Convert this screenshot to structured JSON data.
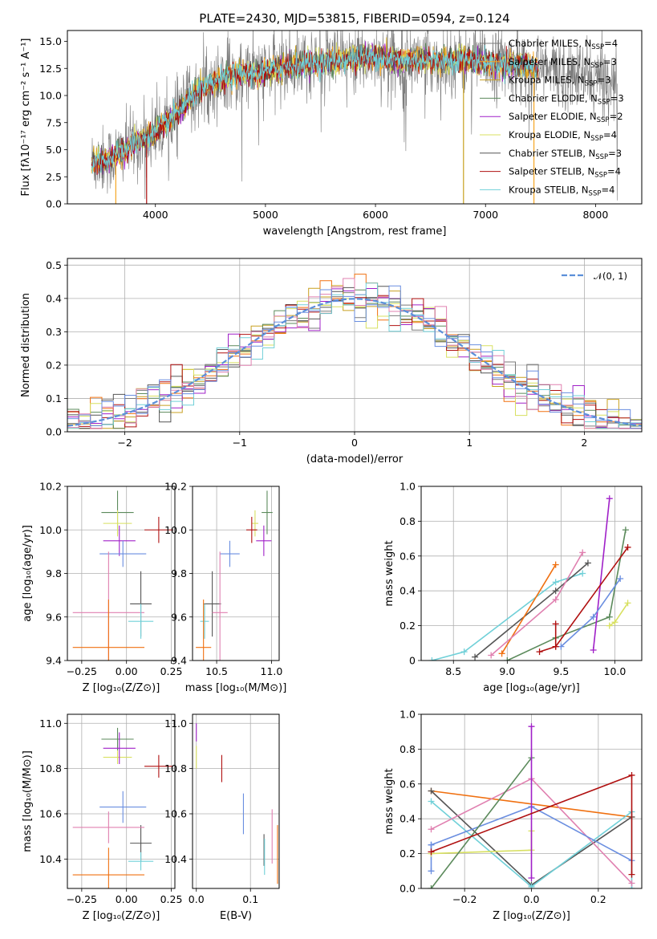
{
  "figure_title": "PLATE=2430, MJD=53815, FIBERID=0594, z=0.124",
  "colors": [
    "#7a7a7a",
    "#f5a623",
    "#c8a020",
    "#5b8a5b",
    "#a020c8",
    "#d8e060",
    "#555555",
    "#b01010",
    "#70d0d8"
  ],
  "chart_data": [
    {
      "id": "spectrum",
      "type": "line",
      "title": "PLATE=2430, MJD=53815, FIBERID=0594, z=0.124",
      "xlabel": "wavelength [Angstrom, rest frame]",
      "ylabel": "Flux [fλ10⁻¹⁷ erg cm⁻² s⁻¹ A⁻¹]",
      "xlim": [
        3200,
        8420
      ],
      "ylim": [
        0,
        16
      ],
      "xticks": [
        "4000",
        "5000",
        "6000",
        "7000",
        "8000"
      ],
      "yticks": [
        "0.0",
        "2.5",
        "5.0",
        "7.5",
        "10.0",
        "12.5",
        "15.0"
      ],
      "grid": false,
      "legend_position": "upper-right",
      "series": [
        {
          "name": "Chabrier MILES, N",
          "sub": "SSP",
          "suffix": "=4"
        },
        {
          "name": "Salpeter MILES, N",
          "sub": "SSP",
          "suffix": "=3"
        },
        {
          "name": "Kroupa MILES, N",
          "sub": "SSP",
          "suffix": "=3"
        },
        {
          "name": "Chabrier ELODIE, N",
          "sub": "SSP",
          "suffix": "=3"
        },
        {
          "name": "Salpeter ELODIE, N",
          "sub": "SSP",
          "suffix": "=2"
        },
        {
          "name": "Kroupa ELODIE, N",
          "sub": "SSP",
          "suffix": "=4"
        },
        {
          "name": "Chabrier STELIB, N",
          "sub": "SSP",
          "suffix": "=3"
        },
        {
          "name": "Salpeter STELIB, N",
          "sub": "SSP",
          "suffix": "=4"
        },
        {
          "name": "Kroupa STELIB, N",
          "sub": "SSP",
          "suffix": "=4"
        }
      ],
      "continuum": [
        [
          3400,
          3.8
        ],
        [
          3600,
          4.2
        ],
        [
          3800,
          5.5
        ],
        [
          4000,
          6.5
        ],
        [
          4200,
          8.5
        ],
        [
          4400,
          10.5
        ],
        [
          4600,
          11.5
        ],
        [
          4800,
          12.0
        ],
        [
          5000,
          12.2
        ],
        [
          5200,
          12.7
        ],
        [
          5400,
          13.0
        ],
        [
          5600,
          13.1
        ],
        [
          5800,
          13.4
        ],
        [
          6000,
          13.6
        ],
        [
          6200,
          13.2
        ],
        [
          6400,
          13.3
        ],
        [
          6600,
          13.2
        ],
        [
          6800,
          13.3
        ],
        [
          7000,
          13.1
        ],
        [
          7200,
          12.9
        ],
        [
          7400,
          12.7
        ],
        [
          7600,
          12.3
        ],
        [
          7800,
          11.9
        ],
        [
          8000,
          11.6
        ],
        [
          8200,
          11.2
        ]
      ]
    },
    {
      "id": "residuals",
      "type": "histogram",
      "xlabel": "(data-model)/error",
      "ylabel": "Normed distribution",
      "xlim": [
        -2.5,
        2.5
      ],
      "ylim": [
        0,
        0.52
      ],
      "xticks": [
        "−2",
        "−1",
        "0",
        "1",
        "2"
      ],
      "yticks": [
        "0.0",
        "0.1",
        "0.2",
        "0.3",
        "0.4",
        "0.5"
      ],
      "grid": true,
      "legend": {
        "label": "𝒩(0, 1)",
        "position": "upper-right",
        "color": "#5b8fd9"
      }
    },
    {
      "id": "age-vs-Z",
      "type": "errorbar",
      "xlabel": "Z [log₁₀(Z/Z⊙)]",
      "ylabel": "age  [log₁₀(age/yr)]",
      "xlim": [
        -0.33,
        0.27
      ],
      "ylim": [
        9.4,
        10.2
      ],
      "xticks": [
        "−0.25",
        "0.00",
        "0.25"
      ],
      "yticks": [
        "9.4",
        "9.6",
        "9.8",
        "10.0",
        "10.2"
      ],
      "grid": true,
      "points": [
        {
          "color": "#5b8a5b",
          "x": -0.05,
          "xe": 0.09,
          "y": 10.08,
          "ye": 0.1
        },
        {
          "color": "#d8e060",
          "x": -0.05,
          "xe": 0.08,
          "y": 10.03,
          "ye": 0.06
        },
        {
          "color": "#b01010",
          "x": 0.18,
          "xe": 0.08,
          "y": 10.0,
          "ye": 0.06
        },
        {
          "color": "#a020c8",
          "x": -0.04,
          "xe": 0.09,
          "y": 9.95,
          "ye": 0.07
        },
        {
          "color": "#6a8ee0",
          "x": -0.02,
          "xe": 0.13,
          "y": 9.89,
          "ye": 0.06
        },
        {
          "color": "#555555",
          "x": 0.08,
          "xe": 0.06,
          "y": 9.66,
          "ye": 0.15
        },
        {
          "color": "#e080b0",
          "x": -0.1,
          "xe": 0.2,
          "y": 9.62,
          "ye": 0.28
        },
        {
          "color": "#70d0d8",
          "x": 0.08,
          "xe": 0.07,
          "y": 9.58,
          "ye": 0.08
        },
        {
          "color": "#f07010",
          "x": -0.1,
          "xe": 0.2,
          "y": 9.46,
          "ye": 0.22
        }
      ]
    },
    {
      "id": "age-vs-mass",
      "type": "errorbar",
      "xlabel": "mass [log₁₀(M/M⊙)]",
      "ylabel": "",
      "xlim": [
        10.28,
        11.07
      ],
      "ylim": [
        9.4,
        10.2
      ],
      "xticks": [
        "10.5",
        "11.0"
      ],
      "yticks": [
        "9.4",
        "9.6",
        "9.8",
        "10.0",
        "10.2"
      ],
      "grid": true,
      "points": [
        {
          "color": "#5b8a5b",
          "x": 10.96,
          "xe": 0.05,
          "y": 10.08,
          "ye": 0.1
        },
        {
          "color": "#d8e060",
          "x": 10.85,
          "xe": 0.03,
          "y": 10.03,
          "ye": 0.06
        },
        {
          "color": "#b01010",
          "x": 10.82,
          "xe": 0.05,
          "y": 10.0,
          "ye": 0.06
        },
        {
          "color": "#a020c8",
          "x": 10.93,
          "xe": 0.07,
          "y": 9.95,
          "ye": 0.07
        },
        {
          "color": "#6a8ee0",
          "x": 10.62,
          "xe": 0.09,
          "y": 9.89,
          "ye": 0.06
        },
        {
          "color": "#555555",
          "x": 10.46,
          "xe": 0.08,
          "y": 9.66,
          "ye": 0.15
        },
        {
          "color": "#e080b0",
          "x": 10.53,
          "xe": 0.07,
          "y": 9.62,
          "ye": 0.28
        },
        {
          "color": "#70d0d8",
          "x": 10.39,
          "xe": 0.04,
          "y": 9.58,
          "ye": 0.08
        },
        {
          "color": "#f07010",
          "x": 10.38,
          "xe": 0.07,
          "y": 9.46,
          "ye": 0.22
        }
      ]
    },
    {
      "id": "mass-weight-vs-age",
      "type": "line",
      "xlabel": "age  [log₁₀(age/yr)]",
      "ylabel": "mass weight",
      "xlim": [
        8.2,
        10.25
      ],
      "ylim": [
        0,
        1
      ],
      "xticks": [
        "8.5",
        "9.0",
        "9.5",
        "10.0"
      ],
      "yticks": [
        "0",
        "0.2",
        "0.4",
        "0.6",
        "0.8",
        "1.0"
      ],
      "grid": true,
      "series": [
        {
          "color": "#70d0d8",
          "points": [
            [
              8.3,
              0.0
            ],
            [
              8.6,
              0.05
            ],
            [
              9.45,
              0.45
            ],
            [
              9.7,
              0.5
            ]
          ]
        },
        {
          "color": "#555555",
          "points": [
            [
              8.7,
              0.02
            ],
            [
              9.45,
              0.4
            ],
            [
              9.75,
              0.56
            ]
          ]
        },
        {
          "color": "#f07010",
          "points": [
            [
              8.95,
              0.04
            ],
            [
              9.45,
              0.55
            ]
          ]
        },
        {
          "color": "#e080b0",
          "points": [
            [
              8.85,
              0.03
            ],
            [
              9.45,
              0.35
            ],
            [
              9.7,
              0.62
            ]
          ]
        },
        {
          "color": "#5b8a5b",
          "points": [
            [
              9.0,
              0.0
            ],
            [
              9.45,
              0.13
            ],
            [
              9.95,
              0.25
            ],
            [
              10.1,
              0.75
            ]
          ]
        },
        {
          "color": "#a020c8",
          "points": [
            [
              9.8,
              0.06
            ],
            [
              9.95,
              0.93
            ]
          ]
        },
        {
          "color": "#6a8ee0",
          "points": [
            [
              9.5,
              0.08
            ],
            [
              9.8,
              0.25
            ],
            [
              10.05,
              0.47
            ]
          ]
        },
        {
          "color": "#d8e060",
          "points": [
            [
              9.95,
              0.2
            ],
            [
              10.0,
              0.22
            ],
            [
              10.12,
              0.33
            ]
          ]
        },
        {
          "color": "#b01010",
          "points": [
            [
              9.3,
              0.05
            ],
            [
              9.45,
              0.08
            ],
            [
              10.12,
              0.65
            ]
          ]
        },
        {
          "color": "#b01010",
          "points": [
            [
              9.45,
              0.08
            ],
            [
              9.45,
              0.21
            ]
          ]
        }
      ]
    },
    {
      "id": "mass-vs-Z",
      "type": "errorbar",
      "xlabel": "Z [log₁₀(Z/Z⊙)]",
      "ylabel": "mass [log₁₀(M/M⊙)]",
      "xlim": [
        -0.33,
        0.27
      ],
      "ylim": [
        10.27,
        11.04
      ],
      "xticks": [
        "−0.25",
        "0.00",
        "0.25"
      ],
      "yticks": [
        "10.4",
        "10.6",
        "10.8",
        "11.0"
      ],
      "grid": true,
      "points": [
        {
          "color": "#5b8a5b",
          "x": -0.05,
          "xe": 0.09,
          "y": 10.93,
          "ye": 0.05
        },
        {
          "color": "#d8e060",
          "x": -0.05,
          "xe": 0.08,
          "y": 10.85,
          "ye": 0.03
        },
        {
          "color": "#b01010",
          "x": 0.18,
          "xe": 0.08,
          "y": 10.81,
          "ye": 0.05
        },
        {
          "color": "#a020c8",
          "x": -0.04,
          "xe": 0.09,
          "y": 10.89,
          "ye": 0.07
        },
        {
          "color": "#6a8ee0",
          "x": -0.02,
          "xe": 0.13,
          "y": 10.63,
          "ye": 0.07
        },
        {
          "color": "#555555",
          "x": 0.08,
          "xe": 0.06,
          "y": 10.47,
          "ye": 0.08
        },
        {
          "color": "#e080b0",
          "x": -0.1,
          "xe": 0.2,
          "y": 10.54,
          "ye": 0.07
        },
        {
          "color": "#70d0d8",
          "x": 0.08,
          "xe": 0.07,
          "y": 10.39,
          "ye": 0.04
        },
        {
          "color": "#f07010",
          "x": -0.1,
          "xe": 0.2,
          "y": 10.33,
          "ye": 0.12
        }
      ]
    },
    {
      "id": "mass-vs-ebv",
      "type": "errorbar",
      "xlabel": "E(B-V)",
      "ylabel": "",
      "xlim": [
        -0.007,
        0.153
      ],
      "ylim": [
        10.27,
        11.04
      ],
      "xticks": [
        "0.0",
        "0.1"
      ],
      "yticks": [
        "10.4",
        "10.6",
        "10.8",
        "11.0"
      ],
      "grid": true,
      "points": [
        {
          "color": "#a020c8",
          "x": 0.0,
          "xe": 0,
          "y": 10.96,
          "ye": 0.04
        },
        {
          "color": "#d8e060",
          "x": 0.0,
          "xe": 0,
          "y": 10.85,
          "ye": 0.05
        },
        {
          "color": "#b01010",
          "x": 0.047,
          "xe": 0,
          "y": 10.8,
          "ye": 0.06
        },
        {
          "color": "#6a8ee0",
          "x": 0.087,
          "xe": 0,
          "y": 10.6,
          "ye": 0.09
        },
        {
          "color": "#555555",
          "x": 0.125,
          "xe": 0,
          "y": 10.44,
          "ye": 0.07
        },
        {
          "color": "#70d0d8",
          "x": 0.126,
          "xe": 0,
          "y": 10.41,
          "ye": 0.08
        },
        {
          "color": "#e080b0",
          "x": 0.14,
          "xe": 0,
          "y": 10.5,
          "ye": 0.12
        },
        {
          "color": "#f07010",
          "x": 0.15,
          "xe": 0,
          "y": 10.42,
          "ye": 0.13
        }
      ]
    },
    {
      "id": "mass-weight-vs-Z",
      "type": "line",
      "xlabel": "Z [log₁₀(Z/Z⊙)]",
      "ylabel": "mass weight",
      "xlim": [
        -0.33,
        0.33
      ],
      "ylim": [
        0,
        1
      ],
      "xticks": [
        "−0.2",
        "0.0",
        "0.2"
      ],
      "yticks": [
        "0.0",
        "0.2",
        "0.4",
        "0.6",
        "0.8",
        "1.0"
      ],
      "grid": true,
      "series": [
        {
          "color": "#f07010",
          "points": [
            [
              -0.3,
              0.56
            ],
            [
              0.3,
              0.41
            ]
          ]
        },
        {
          "color": "#555555",
          "points": [
            [
              -0.3,
              0.56
            ],
            [
              0.0,
              0.02
            ],
            [
              0.3,
              0.41
            ]
          ]
        },
        {
          "color": "#70d0d8",
          "points": [
            [
              -0.3,
              0.5
            ],
            [
              0.0,
              0.01
            ],
            [
              0.3,
              0.44
            ],
            [
              0.3,
              0.0
            ]
          ]
        },
        {
          "color": "#e080b0",
          "points": [
            [
              -0.3,
              0.34
            ],
            [
              0.0,
              0.63
            ],
            [
              0.3,
              0.03
            ]
          ]
        },
        {
          "color": "#6a8ee0",
          "points": [
            [
              -0.3,
              0.25
            ],
            [
              0.0,
              0.47
            ],
            [
              0.3,
              0.16
            ]
          ]
        },
        {
          "color": "#6a8ee0",
          "points": [
            [
              -0.3,
              0.1
            ],
            [
              -0.3,
              0.25
            ]
          ]
        },
        {
          "color": "#d8e060",
          "points": [
            [
              -0.3,
              0.2
            ],
            [
              0.0,
              0.22
            ],
            [
              0.0,
              0.33
            ]
          ]
        },
        {
          "color": "#5b8a5b",
          "points": [
            [
              -0.3,
              0.0
            ],
            [
              0.0,
              0.75
            ]
          ]
        },
        {
          "color": "#a020c8",
          "points": [
            [
              0.0,
              0.06
            ],
            [
              0.0,
              0.93
            ]
          ]
        },
        {
          "color": "#b01010",
          "points": [
            [
              -0.3,
              0.21
            ],
            [
              0.3,
              0.65
            ],
            [
              0.3,
              0.08
            ]
          ]
        }
      ]
    }
  ]
}
